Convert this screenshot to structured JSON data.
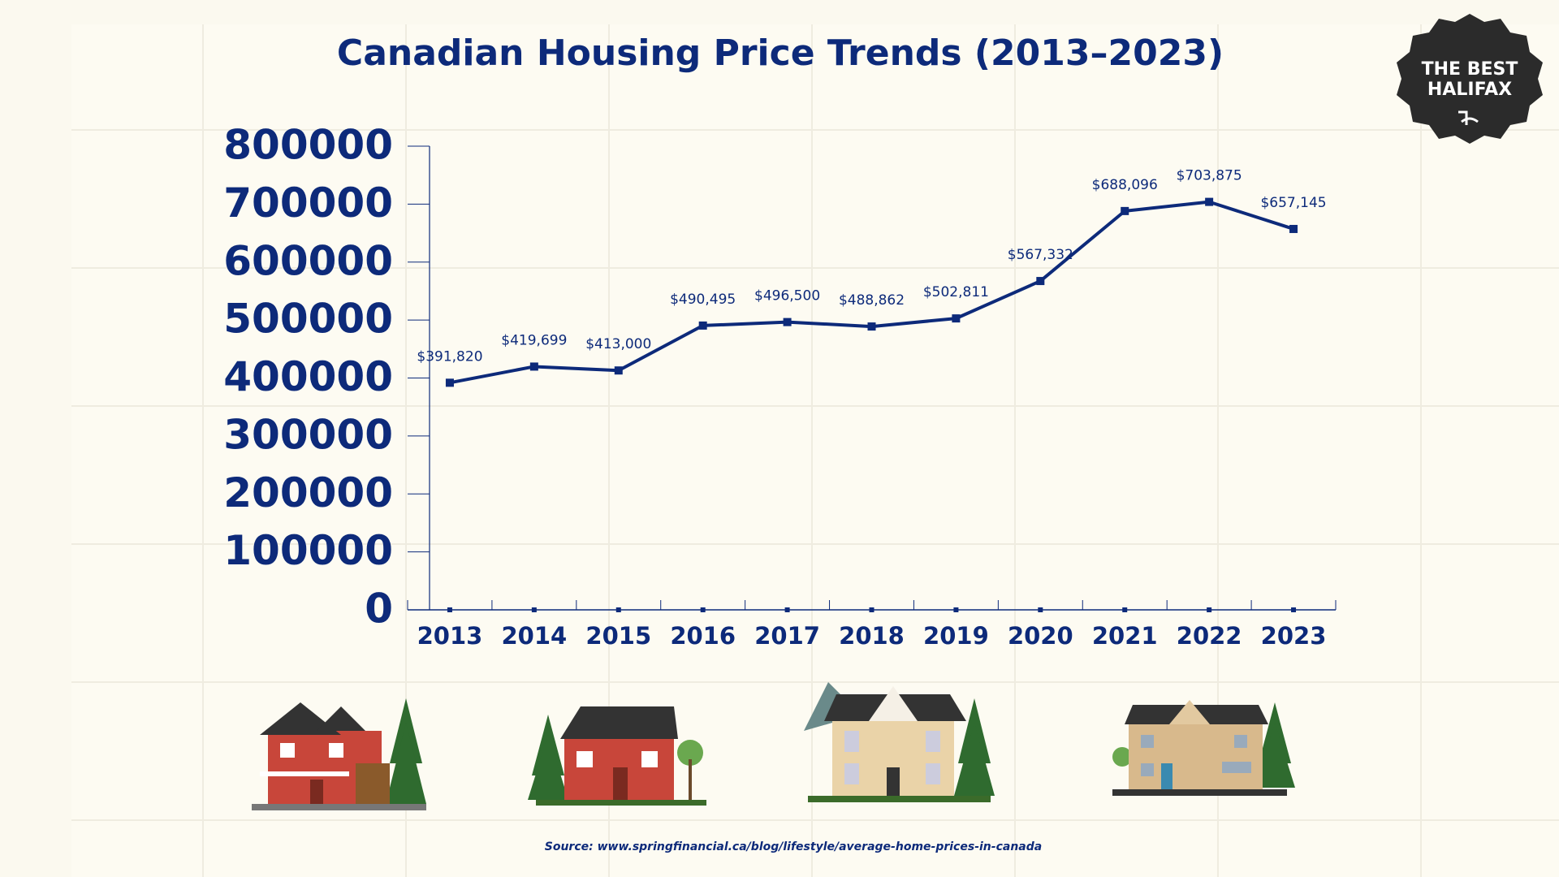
{
  "chart_data": {
    "type": "line",
    "title": "Canadian Housing Price Trends (2013–2023)",
    "categories": [
      "2013",
      "2014",
      "2015",
      "2016",
      "2017",
      "2018",
      "2019",
      "2020",
      "2021",
      "2022",
      "2023"
    ],
    "series": [
      {
        "color": "#0d2a7a",
        "values": [
          391820,
          419699,
          413000,
          490495,
          496500,
          488862,
          502811,
          567332,
          688096,
          703875,
          657145
        ],
        "value_labels": [
          "$391,820",
          "$419,699",
          "$413,000",
          "$490,495",
          "$496,500",
          "$488,862",
          "$502,811",
          "$567,332",
          "$688,096",
          "$703,875",
          "$657,145"
        ]
      }
    ],
    "ylim": [
      0,
      800000
    ],
    "yticks": [
      0,
      100000,
      200000,
      300000,
      400000,
      500000,
      600000,
      700000,
      800000
    ],
    "grid": false,
    "source": "Source: www.springfinancial.ca/blog/lifestyle/average-home-prices-in-canada",
    "badge_lines": [
      "THE BEST",
      "HALIFAX"
    ]
  }
}
